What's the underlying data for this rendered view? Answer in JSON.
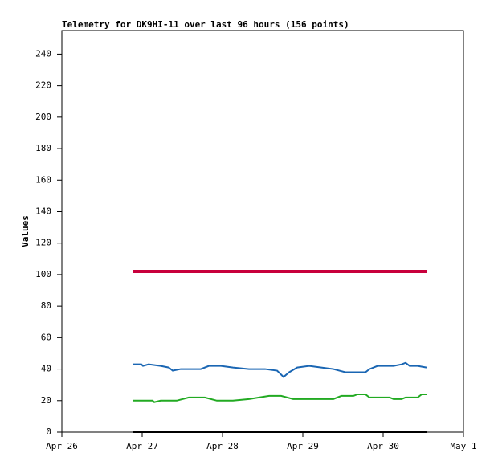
{
  "chart_data": {
    "type": "line",
    "title": "Telemetry for DK9HI-11 over last 96 hours (156 points)",
    "y_label": "Values",
    "xlim": [
      0,
      5
    ],
    "xticks": [
      {
        "value": 0,
        "label": "Apr 26"
      },
      {
        "value": 1,
        "label": "Apr 27"
      },
      {
        "value": 2,
        "label": "Apr 28"
      },
      {
        "value": 3,
        "label": "Apr 29"
      },
      {
        "value": 4,
        "label": "Apr 30"
      },
      {
        "value": 5,
        "label": "May 1"
      }
    ],
    "ylim": [
      0,
      255
    ],
    "yticks": [
      0,
      20,
      40,
      60,
      80,
      100,
      120,
      140,
      160,
      180,
      200,
      220,
      240
    ],
    "grid": false,
    "series": [
      {
        "color": "#c8003c",
        "width": 4,
        "x": [
          0.89,
          4.54
        ],
        "values": [
          102,
          102
        ]
      },
      {
        "color": "#1a66b3",
        "width": 2,
        "x": [
          0.89,
          0.99,
          1.01,
          1.08,
          1.23,
          1.33,
          1.38,
          1.48,
          1.55,
          1.73,
          1.83,
          1.98,
          2.13,
          2.33,
          2.53,
          2.68,
          2.76,
          2.83,
          2.93,
          3.08,
          3.23,
          3.38,
          3.53,
          3.78,
          3.83,
          3.93,
          4.13,
          4.23,
          4.28,
          4.33,
          4.43,
          4.54
        ],
        "values": [
          43,
          43,
          42,
          43,
          42,
          41,
          39,
          40,
          40,
          40,
          42,
          42,
          41,
          40,
          40,
          39,
          35,
          38,
          41,
          42,
          41,
          40,
          38,
          38,
          40,
          42,
          42,
          43,
          44,
          42,
          42,
          41
        ]
      },
      {
        "color": "#22aa22",
        "width": 2,
        "x": [
          0.89,
          1.13,
          1.15,
          1.23,
          1.43,
          1.58,
          1.78,
          1.93,
          2.13,
          2.33,
          2.58,
          2.73,
          2.88,
          3.38,
          3.48,
          3.63,
          3.68,
          3.78,
          3.83,
          4.08,
          4.13,
          4.23,
          4.28,
          4.43,
          4.48,
          4.54
        ],
        "values": [
          20,
          20,
          19,
          20,
          20,
          22,
          22,
          20,
          20,
          21,
          23,
          23,
          21,
          21,
          23,
          23,
          24,
          24,
          22,
          22,
          21,
          21,
          22,
          22,
          24,
          24
        ]
      },
      {
        "color": "#000000",
        "width": 2,
        "x": [
          0.89,
          4.54
        ],
        "values": [
          0,
          0
        ]
      }
    ]
  }
}
